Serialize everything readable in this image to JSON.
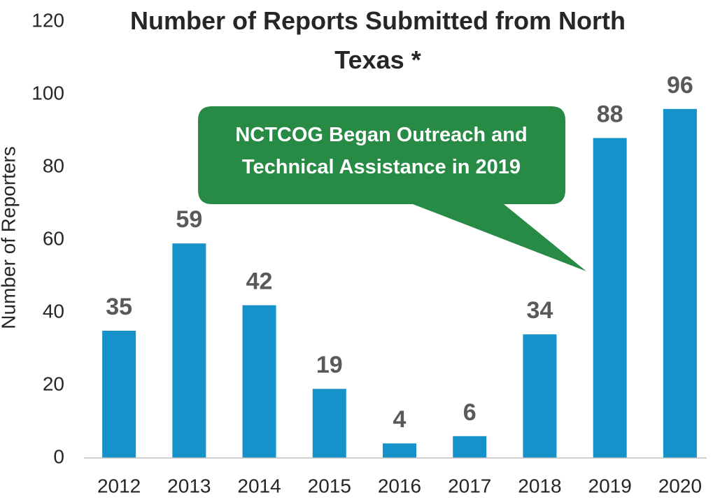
{
  "chart_data": {
    "type": "bar",
    "title": "Number of Reports Submitted from North Texas *",
    "ylabel": "Number of Reporters",
    "annotation": "NCTCOG Began Outreach and Technical Assistance in 2019",
    "categories": [
      "2012",
      "2013",
      "2014",
      "2015",
      "2016",
      "2017",
      "2018",
      "2019",
      "2020"
    ],
    "values": [
      35,
      59,
      42,
      19,
      4,
      6,
      34,
      88,
      96
    ],
    "color": "#1592c9",
    "ylim": [
      0,
      120
    ],
    "yticks": [
      0,
      20,
      40,
      60,
      80,
      100,
      120
    ],
    "grid": false
  }
}
